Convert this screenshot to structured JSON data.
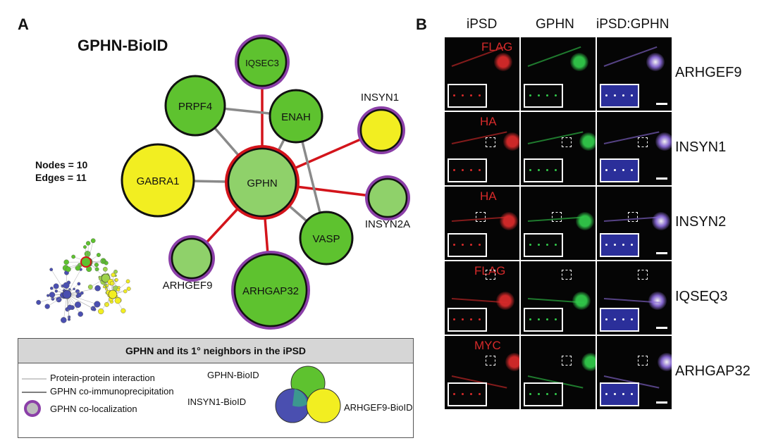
{
  "panel_a": {
    "letter": "A",
    "title": "GPHN-BioID",
    "stats": {
      "nodes": "Nodes = 10",
      "edges": "Edges = 11"
    },
    "nodes": [
      {
        "id": "GPHN",
        "label": "GPHN",
        "fill": "#8fd16a",
        "ring": "#d3141b"
      },
      {
        "id": "IQSEC3",
        "label": "IQSEC3",
        "fill": "#5ec22f",
        "ring": "#8b3fa8"
      },
      {
        "id": "PRPF4",
        "label": "PRPF4",
        "fill": "#5ec22f",
        "ring": ""
      },
      {
        "id": "ENAH",
        "label": "ENAH",
        "fill": "#5ec22f",
        "ring": ""
      },
      {
        "id": "INSYN1",
        "label": "INSYN1",
        "fill": "#f2ee21",
        "ring": "#8b3fa8"
      },
      {
        "id": "GABRA1",
        "label": "GABRA1",
        "fill": "#f2ee21",
        "ring": ""
      },
      {
        "id": "INSYN2A",
        "label": "INSYN2A",
        "fill": "#8fd16a",
        "ring": "#8b3fa8"
      },
      {
        "id": "VASP",
        "label": "VASP",
        "fill": "#5ec22f",
        "ring": ""
      },
      {
        "id": "ARHGEF9",
        "label": "ARHGEF9",
        "fill": "#8fd16a",
        "ring": "#8b3fa8"
      },
      {
        "id": "ARHGAP32",
        "label": "ARHGAP32",
        "fill": "#5ec22f",
        "ring": "#8b3fa8"
      }
    ],
    "edges": [
      {
        "from": "GPHN",
        "to": "IQSEC3",
        "type": "coip"
      },
      {
        "from": "GPHN",
        "to": "INSYN1",
        "type": "coip"
      },
      {
        "from": "GPHN",
        "to": "INSYN2A",
        "type": "coip"
      },
      {
        "from": "GPHN",
        "to": "ARHGEF9",
        "type": "coip"
      },
      {
        "from": "GPHN",
        "to": "ARHGAP32",
        "type": "coip"
      },
      {
        "from": "GPHN",
        "to": "PRPF4",
        "type": "ppi"
      },
      {
        "from": "GPHN",
        "to": "ENAH",
        "type": "ppi"
      },
      {
        "from": "GPHN",
        "to": "GABRA1",
        "type": "ppi"
      },
      {
        "from": "GPHN",
        "to": "VASP",
        "type": "ppi"
      },
      {
        "from": "PRPF4",
        "to": "ENAH",
        "type": "ppi"
      },
      {
        "from": "ENAH",
        "to": "VASP",
        "type": "ppi"
      }
    ],
    "colors": {
      "ppi": "#8a8a8a",
      "coip": "#d3141b",
      "colocalization": "#8b3fa8",
      "dark_outline": "#111111"
    }
  },
  "legend": {
    "heading": "GPHN and its 1° neighbors in the iPSD",
    "ppi_label": "Protein-protein interaction",
    "coip_label": "GPHN co-immunoprecipitation",
    "coloc_label": "GPHN co-localization",
    "venn": {
      "gphn": "GPHN-BioID",
      "insyn1": "INSYN1-BioID",
      "arhgef9": "ARHGEF9-BioID",
      "colors": {
        "gphn": "#5ec22f",
        "insyn1": "#4a4fb0",
        "arhgef9": "#f2ee21"
      }
    }
  },
  "panel_b": {
    "letter": "B",
    "columns": [
      "iPSD",
      "GPHN",
      "iPSD:GPHN"
    ],
    "rows": [
      {
        "label": "ARHGEF9",
        "tag": "FLAG"
      },
      {
        "label": "INSYN1",
        "tag": "HA"
      },
      {
        "label": "INSYN2",
        "tag": "HA"
      },
      {
        "label": "IQSEQ3",
        "tag": "FLAG"
      },
      {
        "label": "ARHGAP32",
        "tag": "MYC"
      }
    ]
  }
}
